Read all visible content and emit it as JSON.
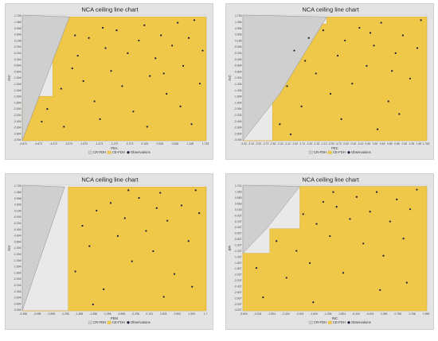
{
  "chart_data": [
    {
      "type": "scatter",
      "title": "NCA ceiling line chart",
      "xlabel": "PEA",
      "ylabel": "INC",
      "xticks": [
        "-4.870",
        "-4.673",
        "-4.472",
        "-3.273",
        "-1.870",
        "-1.473",
        "-1.272",
        "-0.273",
        "0.128",
        "0.528",
        "0.928",
        "1.328",
        "1.728"
      ],
      "yticks": [
        "1.726",
        "1.366",
        "0.996",
        "0.606",
        "0.196",
        "-0.004",
        "-0.204",
        "-0.404",
        "-0.604",
        "-0.804",
        "-1.004",
        "-1.204",
        "-1.404",
        "-1.604",
        "-1.804",
        "-2.004",
        "-2.204",
        "-2.404",
        "-2.604",
        "-2.804",
        "-3.004"
      ],
      "xlim": [
        -4.9,
        1.73
      ],
      "ylim": [
        -3.15,
        1.8
      ],
      "cr_fdh": [
        [
          -4.9,
          -3.15
        ],
        [
          -3.2,
          1.73
        ]
      ],
      "ce_fdh": [
        [
          -4.9,
          -3.15
        ],
        [
          -4.9,
          -1.4
        ],
        [
          -3.8,
          -1.4
        ],
        [
          -3.8,
          1.73
        ],
        [
          1.73,
          1.73
        ]
      ],
      "points": [
        [
          -4.2,
          -2.4
        ],
        [
          -4.0,
          -1.9
        ],
        [
          -3.5,
          -1.1
        ],
        [
          -3.4,
          -2.6
        ],
        [
          -3.1,
          -0.3
        ],
        [
          -2.9,
          0.2
        ],
        [
          -2.7,
          -0.8
        ],
        [
          -2.5,
          0.9
        ],
        [
          -2.3,
          -1.6
        ],
        [
          -2.1,
          -2.3
        ],
        [
          -1.9,
          0.5
        ],
        [
          -1.7,
          -0.4
        ],
        [
          -1.5,
          1.2
        ],
        [
          -1.3,
          -1.0
        ],
        [
          -1.1,
          0.3
        ],
        [
          -0.9,
          -2.0
        ],
        [
          -0.7,
          0.8
        ],
        [
          -0.5,
          1.4
        ],
        [
          -0.3,
          -0.6
        ],
        [
          -0.1,
          0.1
        ],
        [
          0.1,
          1.0
        ],
        [
          0.3,
          -1.3
        ],
        [
          0.5,
          0.6
        ],
        [
          0.7,
          1.5
        ],
        [
          0.9,
          -0.2
        ],
        [
          1.1,
          0.9
        ],
        [
          1.3,
          1.6
        ],
        [
          1.5,
          -0.9
        ],
        [
          1.6,
          0.4
        ],
        [
          -2.0,
          1.3
        ],
        [
          -0.4,
          -2.6
        ],
        [
          0.8,
          -1.8
        ],
        [
          1.2,
          -2.5
        ],
        [
          -3.0,
          1.0
        ],
        [
          0.2,
          -0.5
        ]
      ],
      "legend": [
        "CR-FDH",
        "CE-FDH",
        "Observations"
      ],
      "legend_position": "bottom"
    },
    {
      "type": "scatter",
      "title": "NCA ceiling line chart",
      "xlabel": "PEC",
      "ylabel": "INC",
      "xticks": [
        "-3.32",
        "-3.10",
        "-2.92",
        "-2.72",
        "-2.52",
        "-2.32",
        "-2.12",
        "-1.92",
        "-1.72",
        "-1.52",
        "-1.32",
        "-1.12",
        "-0.92",
        "-0.72",
        "-0.52",
        "-0.32",
        "-0.12",
        "0.08",
        "0.28",
        "0.48",
        "0.68",
        "0.88",
        "1.08",
        "1.28",
        "1.48",
        "1.763"
      ],
      "yticks": [
        "1.726",
        "1.366",
        "0.996",
        "0.606",
        "0.196",
        "-0.004",
        "-0.204",
        "-0.404",
        "-0.604",
        "-0.804",
        "-1.004",
        "-1.204",
        "-1.404",
        "-1.604",
        "-1.804",
        "-2.004",
        "-2.204",
        "-2.404",
        "-2.604",
        "-2.804",
        "-3.004"
      ],
      "xlim": [
        -3.32,
        1.763
      ],
      "ylim": [
        -3.15,
        1.8
      ],
      "cr_fdh": [
        [
          -3.32,
          -3.15
        ],
        [
          -2.3,
          -1.3
        ],
        [
          -1.0,
          1.73
        ]
      ],
      "ce_fdh": [
        [
          -3.32,
          -3.15
        ],
        [
          -2.5,
          -3.15
        ],
        [
          -2.5,
          1.45
        ],
        [
          -1.0,
          1.45
        ],
        [
          -1.0,
          1.73
        ],
        [
          1.763,
          1.73
        ]
      ],
      "points": [
        [
          -2.3,
          -2.5
        ],
        [
          -2.1,
          -1.0
        ],
        [
          -1.9,
          0.4
        ],
        [
          -1.7,
          -1.8
        ],
        [
          -1.5,
          0.9
        ],
        [
          -1.3,
          -0.5
        ],
        [
          -1.1,
          1.2
        ],
        [
          -0.9,
          -1.3
        ],
        [
          -0.7,
          0.2
        ],
        [
          -0.5,
          0.8
        ],
        [
          -0.3,
          -0.9
        ],
        [
          -0.1,
          1.3
        ],
        [
          0.1,
          -0.2
        ],
        [
          0.3,
          0.6
        ],
        [
          0.5,
          1.5
        ],
        [
          0.7,
          -1.6
        ],
        [
          0.9,
          0.3
        ],
        [
          1.1,
          1.0
        ],
        [
          1.3,
          -0.7
        ],
        [
          1.5,
          0.5
        ],
        [
          1.6,
          1.6
        ],
        [
          -2.0,
          -2.9
        ],
        [
          -0.6,
          -2.3
        ],
        [
          0.4,
          -2.7
        ],
        [
          1.0,
          -2.1
        ],
        [
          -1.6,
          0.0
        ],
        [
          0.2,
          1.1
        ],
        [
          0.8,
          -0.4
        ]
      ],
      "legend": [
        "CR-FDH",
        "CE-FDH",
        "Observations"
      ],
      "legend_position": "bottom"
    },
    {
      "type": "scatter",
      "title": "NCA ceiling line chart",
      "xlabel": "PEM",
      "ylabel": "INC",
      "xticks": [
        "-3.498",
        "-3.098",
        "-2.698",
        "-2.298",
        "-1.898",
        "-1.498",
        "-1.098",
        "-0.698",
        "-0.298",
        "0.103",
        "0.503",
        "0.903",
        "1.303",
        "1.7"
      ],
      "yticks": [
        "1.726",
        "1.366",
        "0.996",
        "0.606",
        "0.196",
        "-0.004",
        "-0.204",
        "-0.404",
        "-0.604",
        "-0.804",
        "-1.004",
        "-1.204",
        "-1.404",
        "-1.604",
        "-1.804",
        "-2.004",
        "-2.204",
        "-2.404",
        "-2.604",
        "-2.804",
        "-3.004"
      ],
      "xlim": [
        -3.498,
        1.7
      ],
      "ylim": [
        -3.15,
        1.8
      ],
      "cr_fdh": [
        [
          -3.498,
          -3.15
        ],
        [
          -2.3,
          1.73
        ]
      ],
      "ce_fdh": [
        [
          -3.498,
          -3.15
        ],
        [
          -2.2,
          -3.15
        ],
        [
          -2.2,
          1.73
        ],
        [
          1.7,
          1.73
        ]
      ],
      "points": [
        [
          -2.0,
          -1.6
        ],
        [
          -1.8,
          0.2
        ],
        [
          -1.6,
          -0.6
        ],
        [
          -1.4,
          0.8
        ],
        [
          -1.2,
          -2.3
        ],
        [
          -1.0,
          1.1
        ],
        [
          -0.8,
          -0.2
        ],
        [
          -0.6,
          0.5
        ],
        [
          -0.4,
          -1.2
        ],
        [
          -0.2,
          1.3
        ],
        [
          0.0,
          0.0
        ],
        [
          0.2,
          -0.8
        ],
        [
          0.4,
          1.5
        ],
        [
          0.6,
          0.4
        ],
        [
          0.8,
          -1.7
        ],
        [
          1.0,
          1.0
        ],
        [
          1.2,
          -0.4
        ],
        [
          1.4,
          1.6
        ],
        [
          1.5,
          0.7
        ],
        [
          -1.5,
          -2.9
        ],
        [
          0.5,
          -2.6
        ],
        [
          1.3,
          -2.2
        ],
        [
          -0.5,
          1.6
        ],
        [
          0.3,
          0.9
        ]
      ],
      "legend": [
        "CR-FDH",
        "CE-FDH",
        "Observations"
      ],
      "legend_position": "bottom"
    },
    {
      "type": "scatter",
      "title": "NCA ceiling line chart",
      "xlabel": "INC",
      "ylabel": "EPI",
      "xticks": [
        "-3.604",
        "-3.204",
        "-2.804",
        "-2.404",
        "-2.004",
        "-1.604",
        "-1.204",
        "-0.804",
        "-0.404",
        "-0.004",
        "0.396",
        "0.796",
        "1.196",
        "1.596"
      ],
      "yticks": [
        "1.701",
        "1.363",
        "0.963",
        "0.563",
        "0.163",
        "-0.037",
        "-0.237",
        "-0.437",
        "-0.637",
        "-0.837",
        "-1.037",
        "-1.237",
        "-1.437",
        "-1.637",
        "-1.837",
        "-2.037",
        "-2.237",
        "-2.437",
        "-2.637",
        "-2.837",
        "-3.037",
        "-3.237"
      ],
      "xlim": [
        -3.604,
        1.9
      ],
      "ylim": [
        -3.35,
        1.78
      ],
      "cr_fdh": [
        [
          -3.604,
          -1.0
        ],
        [
          -2.9,
          0.0
        ],
        [
          -1.9,
          1.73
        ]
      ],
      "ce_fdh": [
        [
          -3.604,
          -3.35
        ],
        [
          -3.604,
          -1.0
        ],
        [
          -2.8,
          -1.0
        ],
        [
          -2.8,
          0.0
        ],
        [
          -1.9,
          0.0
        ],
        [
          -1.9,
          1.73
        ],
        [
          1.9,
          1.73
        ]
      ],
      "points": [
        [
          -3.2,
          -1.6
        ],
        [
          -3.0,
          -2.8
        ],
        [
          -2.6,
          -0.5
        ],
        [
          -2.3,
          -2.0
        ],
        [
          -2.0,
          -0.9
        ],
        [
          -1.8,
          0.6
        ],
        [
          -1.6,
          -1.4
        ],
        [
          -1.4,
          0.2
        ],
        [
          -1.2,
          1.1
        ],
        [
          -1.0,
          -0.3
        ],
        [
          -0.8,
          0.9
        ],
        [
          -0.6,
          -1.8
        ],
        [
          -0.4,
          0.4
        ],
        [
          -0.2,
          1.3
        ],
        [
          0.0,
          -0.6
        ],
        [
          0.2,
          0.7
        ],
        [
          0.4,
          1.5
        ],
        [
          0.6,
          -1.1
        ],
        [
          0.8,
          0.3
        ],
        [
          1.0,
          1.2
        ],
        [
          1.2,
          -0.4
        ],
        [
          1.4,
          0.8
        ],
        [
          1.6,
          1.6
        ],
        [
          -1.5,
          -3.0
        ],
        [
          0.5,
          -2.5
        ],
        [
          1.3,
          -2.2
        ],
        [
          -0.9,
          1.5
        ]
      ],
      "legend": [
        "CR-FDH",
        "CE-FDH",
        "Observations"
      ],
      "legend_position": "bottom"
    }
  ],
  "colors": {
    "background": "#e3e3e3",
    "ce_fdh_fill": "#efc84a",
    "cr_fdh_fill": "#cfcfcf",
    "cr_fdh_line": "#8f8f8f",
    "point": "#1e1a3c"
  }
}
